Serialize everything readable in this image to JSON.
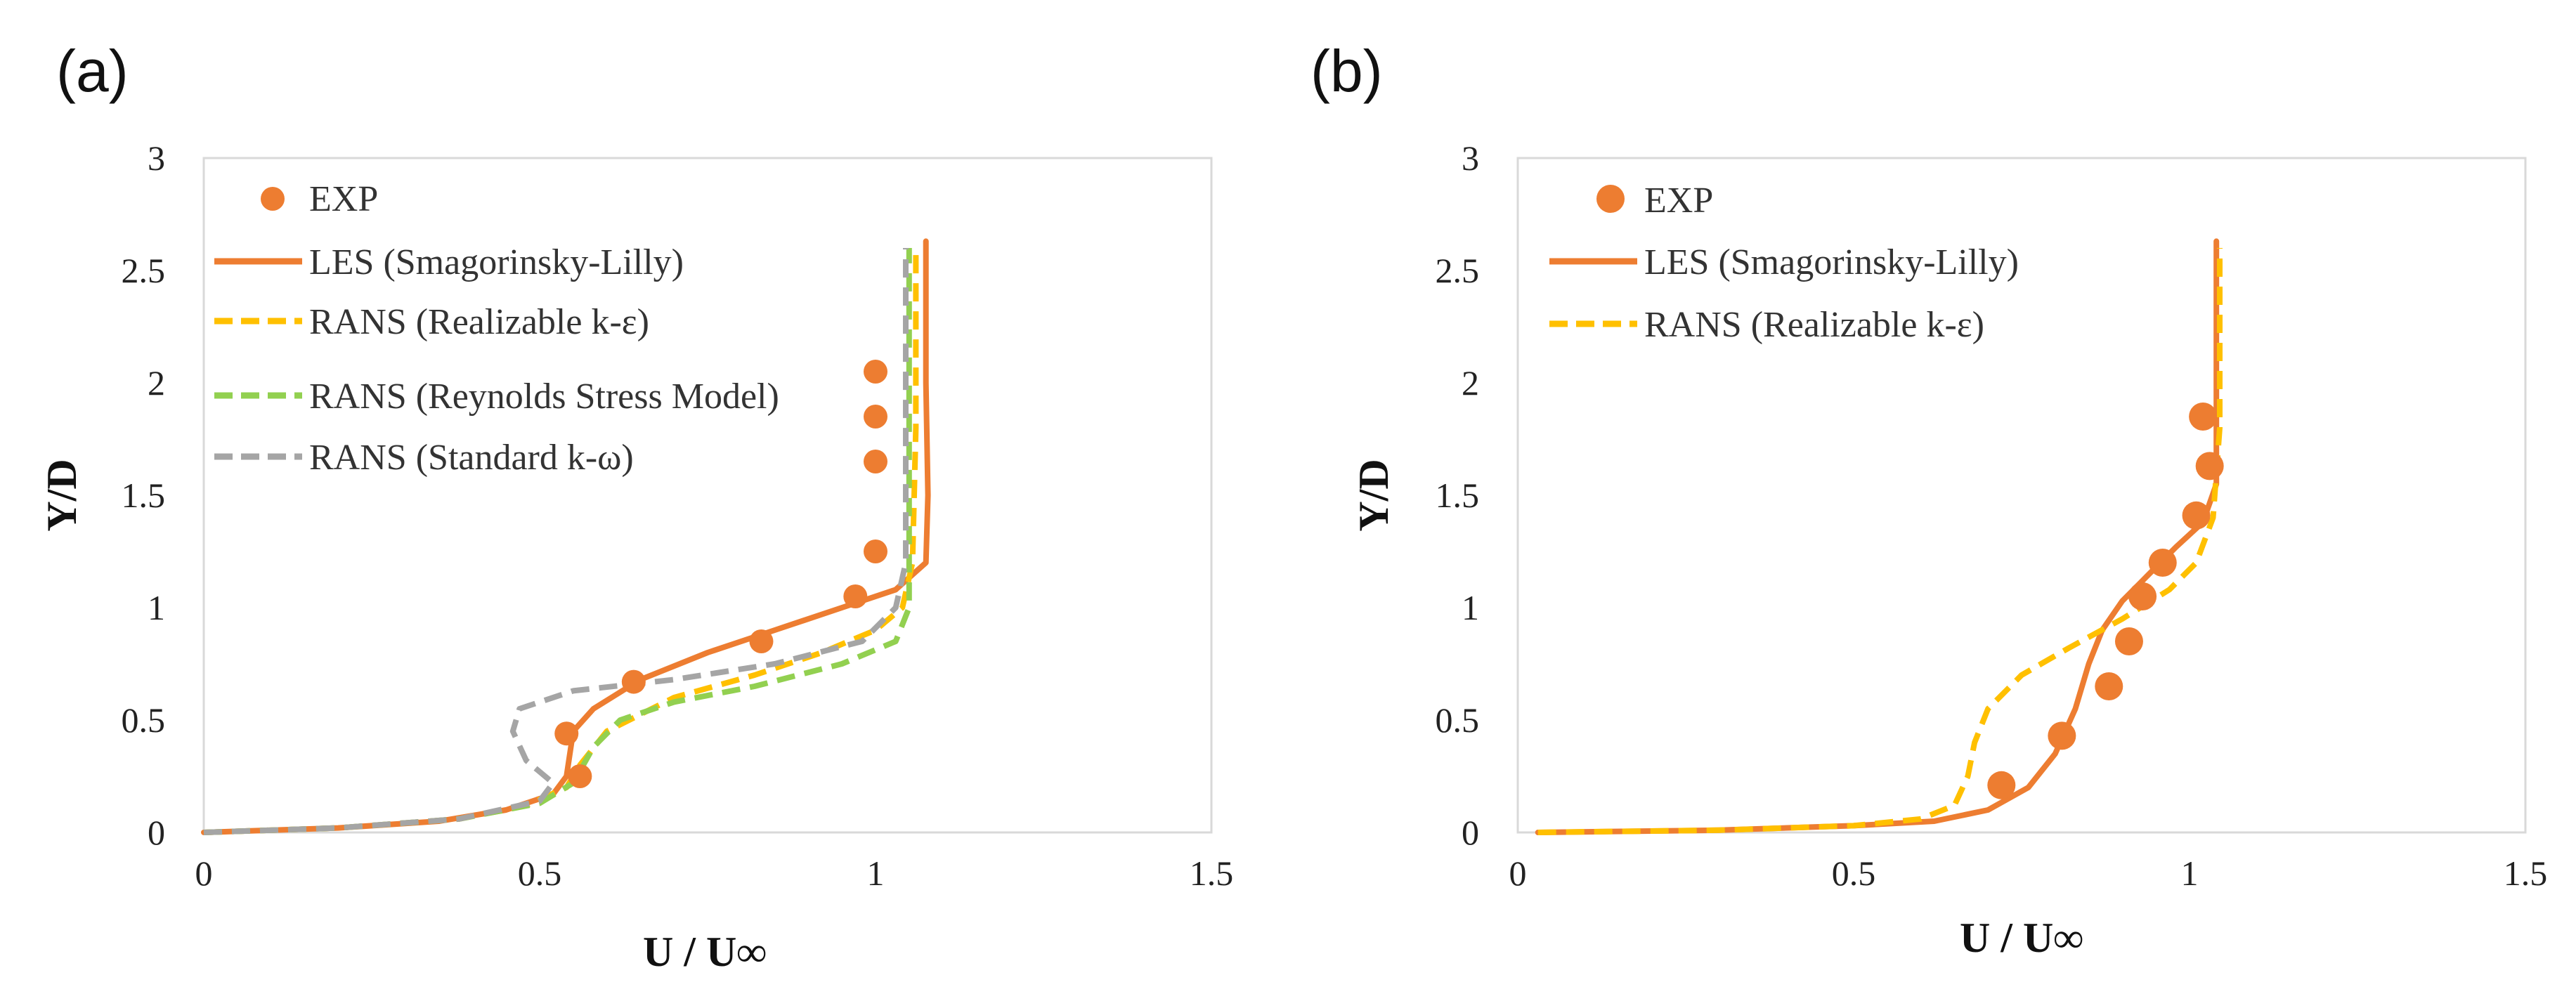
{
  "chart_data": [
    {
      "panel": "(a)",
      "type": "line",
      "xlabel": "U / U∞",
      "ylabel": "Y/D",
      "xlim": [
        0,
        1.5
      ],
      "ylim": [
        0,
        3
      ],
      "xticks": [
        "0",
        "0.5",
        "1",
        "1.5"
      ],
      "yticks": [
        "0",
        "0.5",
        "1",
        "1.5",
        "2",
        "2.5",
        "3"
      ],
      "exp": {
        "name": "EXP",
        "color": "#ED7D31",
        "x": [
          0.56,
          0.54,
          0.64,
          0.83,
          0.97,
          1.0,
          1.0,
          1.0,
          1.0
        ],
        "y": [
          0.25,
          0.44,
          0.67,
          0.85,
          1.05,
          1.25,
          1.65,
          1.85,
          2.05
        ]
      },
      "series": [
        {
          "name": "LES (Smagorinsky-Lilly)",
          "color": "#ED7D31",
          "dash": "solid",
          "x": [
            0.0,
            0.2,
            0.35,
            0.45,
            0.52,
            0.54,
            0.545,
            0.55,
            0.58,
            0.65,
            0.75,
            0.85,
            0.95,
            1.03,
            1.075,
            1.078,
            1.075,
            1.075
          ],
          "y": [
            0.0,
            0.02,
            0.05,
            0.1,
            0.17,
            0.25,
            0.35,
            0.45,
            0.55,
            0.68,
            0.8,
            0.9,
            1.0,
            1.08,
            1.2,
            1.5,
            2.0,
            2.63
          ]
        },
        {
          "name": "RANS (Realizable k-ε)",
          "color": "#FFC000",
          "dash": "dash",
          "x": [
            0.0,
            0.2,
            0.38,
            0.48,
            0.54,
            0.56,
            0.6,
            0.7,
            0.82,
            0.92,
            1.0,
            1.04,
            1.055,
            1.06,
            1.06
          ],
          "y": [
            0.0,
            0.02,
            0.06,
            0.12,
            0.2,
            0.3,
            0.45,
            0.6,
            0.7,
            0.8,
            0.9,
            1.0,
            1.2,
            1.8,
            2.6
          ]
        },
        {
          "name": "RANS (Reynolds Stress Model)",
          "color": "#92D050",
          "dash": "dash",
          "x": [
            0.0,
            0.2,
            0.38,
            0.5,
            0.55,
            0.58,
            0.62,
            0.7,
            0.82,
            0.95,
            1.03,
            1.05,
            1.05,
            1.05
          ],
          "y": [
            0.0,
            0.02,
            0.06,
            0.13,
            0.22,
            0.38,
            0.5,
            0.58,
            0.65,
            0.75,
            0.85,
            1.0,
            1.5,
            2.6
          ]
        },
        {
          "name": "RANS (Standard k-ω)",
          "color": "#A5A5A5",
          "dash": "dash",
          "x": [
            0.0,
            0.2,
            0.38,
            0.5,
            0.52,
            0.48,
            0.46,
            0.47,
            0.55,
            0.7,
            0.85,
            0.98,
            1.03,
            1.045,
            1.045
          ],
          "y": [
            0.0,
            0.02,
            0.06,
            0.14,
            0.22,
            0.32,
            0.45,
            0.55,
            0.63,
            0.68,
            0.75,
            0.85,
            1.0,
            1.2,
            2.6
          ]
        }
      ]
    },
    {
      "panel": "(b)",
      "type": "line",
      "xlabel": "U / U∞",
      "ylabel": "Y/D",
      "xlim": [
        0,
        1.5
      ],
      "ylim": [
        0,
        3
      ],
      "xticks": [
        "0",
        "0.5",
        "1",
        "1.5"
      ],
      "yticks": [
        "0",
        "0.5",
        "1",
        "1.5",
        "2",
        "2.5",
        "3"
      ],
      "exp": {
        "name": "EXP",
        "color": "#ED7D31",
        "x": [
          0.72,
          0.81,
          0.88,
          0.91,
          0.93,
          0.96,
          1.01,
          1.03,
          1.02
        ],
        "y": [
          0.21,
          0.43,
          0.65,
          0.85,
          1.05,
          1.2,
          1.41,
          1.63,
          1.85
        ]
      },
      "series": [
        {
          "name": "LES (Smagorinsky-Lilly)",
          "color": "#ED7D31",
          "dash": "solid",
          "x": [
            0.03,
            0.3,
            0.5,
            0.62,
            0.7,
            0.76,
            0.8,
            0.83,
            0.85,
            0.87,
            0.9,
            0.94,
            0.98,
            1.02,
            1.04,
            1.04,
            1.04
          ],
          "y": [
            0.0,
            0.01,
            0.03,
            0.05,
            0.1,
            0.2,
            0.35,
            0.55,
            0.75,
            0.9,
            1.03,
            1.15,
            1.27,
            1.38,
            1.55,
            2.0,
            2.63
          ]
        },
        {
          "name": "RANS (Realizable k-ε)",
          "color": "#FFC000",
          "dash": "dash",
          "x": [
            0.03,
            0.3,
            0.5,
            0.6,
            0.65,
            0.67,
            0.68,
            0.7,
            0.75,
            0.82,
            0.9,
            0.97,
            1.01,
            1.035,
            1.045,
            1.045
          ],
          "y": [
            0.0,
            0.01,
            0.03,
            0.06,
            0.12,
            0.25,
            0.4,
            0.55,
            0.7,
            0.82,
            0.95,
            1.08,
            1.2,
            1.4,
            1.8,
            2.6
          ]
        }
      ]
    }
  ]
}
